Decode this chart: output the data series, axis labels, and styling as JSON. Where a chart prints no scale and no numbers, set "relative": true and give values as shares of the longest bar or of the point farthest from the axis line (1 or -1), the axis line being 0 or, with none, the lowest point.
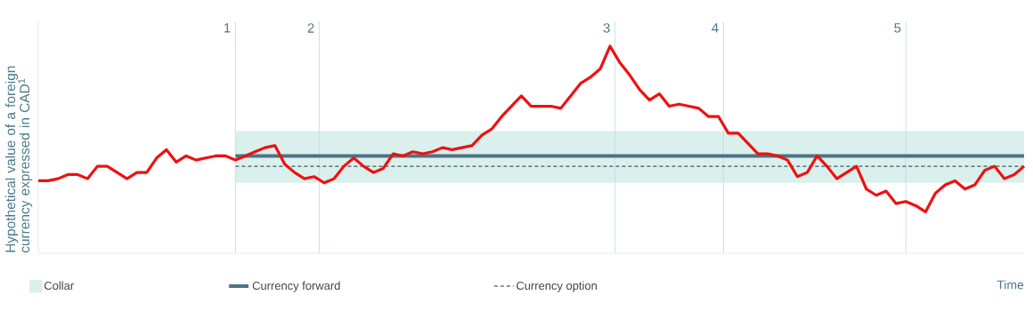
{
  "chart_data": {
    "type": "line",
    "relative": true,
    "ylabel": "Hypothetical value of a foreign currency expressed in CAD$^{1}$",
    "xlabel": "Time",
    "legend": "bottom",
    "categories": [
      null,
      null,
      null,
      null,
      null,
      null,
      null,
      null,
      null,
      null,
      null,
      null,
      null,
      null,
      null,
      null,
      null,
      null,
      null,
      null,
      null,
      null,
      null,
      null,
      null,
      null,
      null,
      null,
      null,
      null,
      null,
      null,
      null,
      null,
      null,
      null,
      null,
      null,
      null,
      null,
      null,
      null,
      null,
      null,
      null,
      null,
      null,
      null,
      null,
      null,
      null,
      null,
      null,
      null,
      null,
      null,
      null,
      null,
      null,
      null,
      null,
      null,
      null,
      null,
      null,
      null,
      null,
      null,
      null,
      null,
      null,
      null,
      null,
      null,
      null,
      null,
      null,
      null,
      null,
      null,
      null,
      null,
      null,
      null,
      null,
      null,
      null,
      null,
      null,
      null,
      null,
      null,
      null,
      null,
      null,
      null,
      null,
      null,
      null,
      null,
      null
    ],
    "series": [
      {
        "color": "#ee1111",
        "values": [
          0.35,
          0.35,
          0.36,
          0.38,
          0.38,
          0.36,
          0.42,
          0.42,
          0.39,
          0.36,
          0.39,
          0.39,
          0.46,
          0.5,
          0.44,
          0.47,
          0.45,
          0.46,
          0.47,
          0.47,
          0.45,
          0.47,
          0.49,
          0.51,
          0.52,
          0.43,
          0.39,
          0.36,
          0.37,
          0.34,
          0.36,
          0.42,
          0.46,
          0.42,
          0.39,
          0.41,
          0.48,
          0.47,
          0.49,
          0.48,
          0.49,
          0.51,
          0.5,
          0.51,
          0.52,
          0.57,
          0.6,
          0.66,
          0.71,
          0.76,
          0.71,
          0.71,
          0.71,
          0.7,
          0.76,
          0.82,
          0.85,
          0.89,
          1,
          0.92,
          0.86,
          0.79,
          0.74,
          0.77,
          0.71,
          0.72,
          0.71,
          0.7,
          0.66,
          0.66,
          0.58,
          0.58,
          0.53,
          0.48,
          0.48,
          0.47,
          0.45,
          0.37,
          0.39,
          0.47,
          0.42,
          0.36,
          0.39,
          0.42,
          0.31,
          0.28,
          0.3,
          0.24,
          0.25,
          0.23,
          0.2,
          0.29,
          0.33,
          0.35,
          0.31,
          0.33,
          0.4,
          0.42,
          0.36,
          0.38,
          0.42
        ]
      },
      {
        "name": "Currency forward",
        "color": "#4d7483",
        "values": [
          null,
          null,
          null,
          null,
          null,
          null,
          null,
          null,
          null,
          null,
          null,
          null,
          null,
          null,
          null,
          null,
          null,
          null,
          null,
          null,
          0.47,
          0.47,
          0.47,
          0.47,
          0.47,
          0.47,
          0.47,
          0.47,
          0.47,
          0.47,
          0.47,
          0.47,
          0.47,
          0.47,
          0.47,
          0.47,
          0.47,
          0.47,
          0.47,
          0.47,
          0.47,
          0.47,
          0.47,
          0.47,
          0.47,
          0.47,
          0.47,
          0.47,
          0.47,
          0.47,
          0.47,
          0.47,
          0.47,
          0.47,
          0.47,
          0.47,
          0.47,
          0.47,
          0.47,
          0.47,
          0.47,
          0.47,
          0.47,
          0.47,
          0.47,
          0.47,
          0.47,
          0.47,
          0.47,
          0.47,
          0.47,
          0.47,
          0.47,
          0.47,
          0.47,
          0.47,
          0.47,
          0.47,
          0.47,
          0.47,
          0.47,
          0.47,
          0.47,
          0.47,
          0.47,
          0.47,
          0.47,
          0.47,
          0.47,
          0.47,
          0.47,
          0.47,
          0.47,
          0.47,
          0.47,
          0.47,
          0.47,
          0.47,
          0.47,
          0.47,
          0.47
        ]
      },
      {
        "name": "Currency option",
        "color": "#1a2f4f",
        "line_style": "dashed",
        "values": [
          null,
          null,
          null,
          null,
          null,
          null,
          null,
          null,
          null,
          null,
          null,
          null,
          null,
          null,
          null,
          null,
          null,
          null,
          null,
          null,
          0.42,
          0.42,
          0.42,
          0.42,
          0.42,
          0.42,
          0.42,
          0.42,
          0.42,
          0.42,
          0.42,
          0.42,
          0.42,
          0.42,
          0.42,
          0.42,
          0.42,
          0.42,
          0.42,
          0.42,
          0.42,
          0.42,
          0.42,
          0.42,
          0.42,
          0.42,
          0.42,
          0.42,
          0.42,
          0.42,
          0.42,
          0.42,
          0.42,
          0.42,
          0.42,
          0.42,
          0.42,
          0.42,
          0.42,
          0.42,
          0.42,
          0.42,
          0.42,
          0.42,
          0.42,
          0.42,
          0.42,
          0.42,
          0.42,
          0.42,
          0.42,
          0.42,
          0.42,
          0.42,
          0.42,
          0.42,
          0.42,
          0.42,
          0.42,
          0.42,
          0.42,
          0.42,
          0.42,
          0.42,
          0.42,
          0.42,
          0.42,
          0.42,
          0.42,
          0.42,
          0.42,
          0.42,
          0.42,
          0.42,
          0.42,
          0.42,
          0.42,
          0.42,
          0.42,
          0.42,
          0.42
        ]
      }
    ],
    "bands": [
      {
        "axis": "y",
        "from": 0.34,
        "to": 0.59,
        "label": "Collar",
        "color": "#daf0ec"
      }
    ],
    "annotations": [
      "1",
      "2",
      "3",
      "4",
      "5"
    ]
  }
}
